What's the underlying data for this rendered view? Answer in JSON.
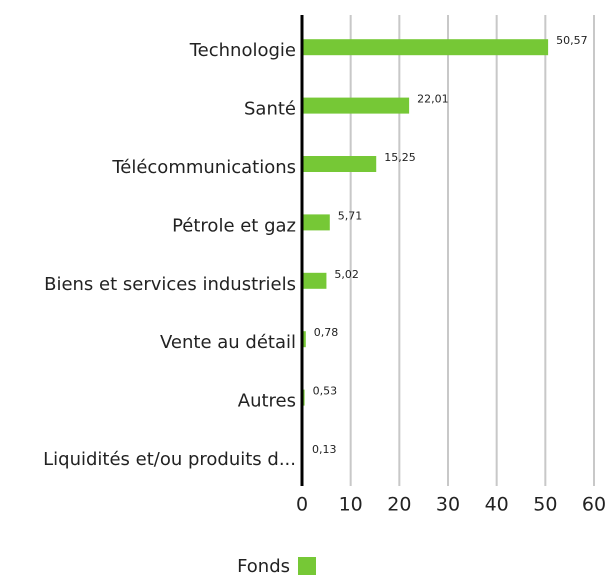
{
  "chart_data": {
    "type": "bar",
    "orientation": "horizontal",
    "categories": [
      "Technologie",
      "Santé",
      "Télécommunications",
      "Pétrole et gaz",
      "Biens et services industriels",
      "Vente au détail",
      "Autres",
      "Liquidités et/ou produits d..."
    ],
    "series": [
      {
        "name": "Fonds",
        "color": "#76c836",
        "values": [
          50.57,
          22.01,
          15.25,
          5.71,
          5.02,
          0.78,
          0.53,
          0.13
        ],
        "value_labels": [
          "50,57",
          "22,01",
          "15,25",
          "5,71",
          "5,02",
          "0,78",
          "0,53",
          "0,13"
        ]
      }
    ],
    "xlim": [
      0,
      60
    ],
    "xticks": [
      0,
      10,
      20,
      30,
      40,
      50,
      60
    ],
    "grid": true,
    "legend": "bottom"
  }
}
